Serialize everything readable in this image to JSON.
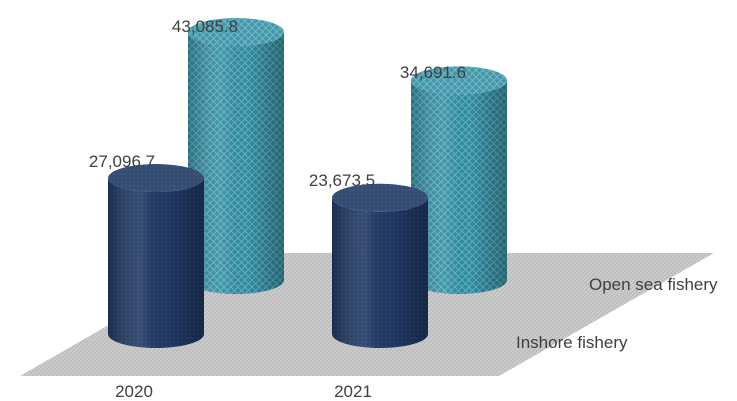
{
  "chart_data": {
    "type": "bar",
    "style": "3d-cylinder",
    "categories": [
      "2020",
      "2021"
    ],
    "series": [
      {
        "name": "Inshore fishery",
        "values": [
          27096.7,
          23673.5
        ],
        "labels": [
          "27,096.7",
          "23,673.5"
        ],
        "color": "#1f3864"
      },
      {
        "name": "Open sea fishery",
        "values": [
          43085.8,
          34691.6
        ],
        "labels": [
          "43,085.8",
          "34,691.6"
        ],
        "color": "#2e8ea3"
      }
    ],
    "title": "",
    "xlabel": "",
    "ylabel": "",
    "grid": false,
    "legend": "none",
    "floor_color": "#c8c8c8"
  }
}
